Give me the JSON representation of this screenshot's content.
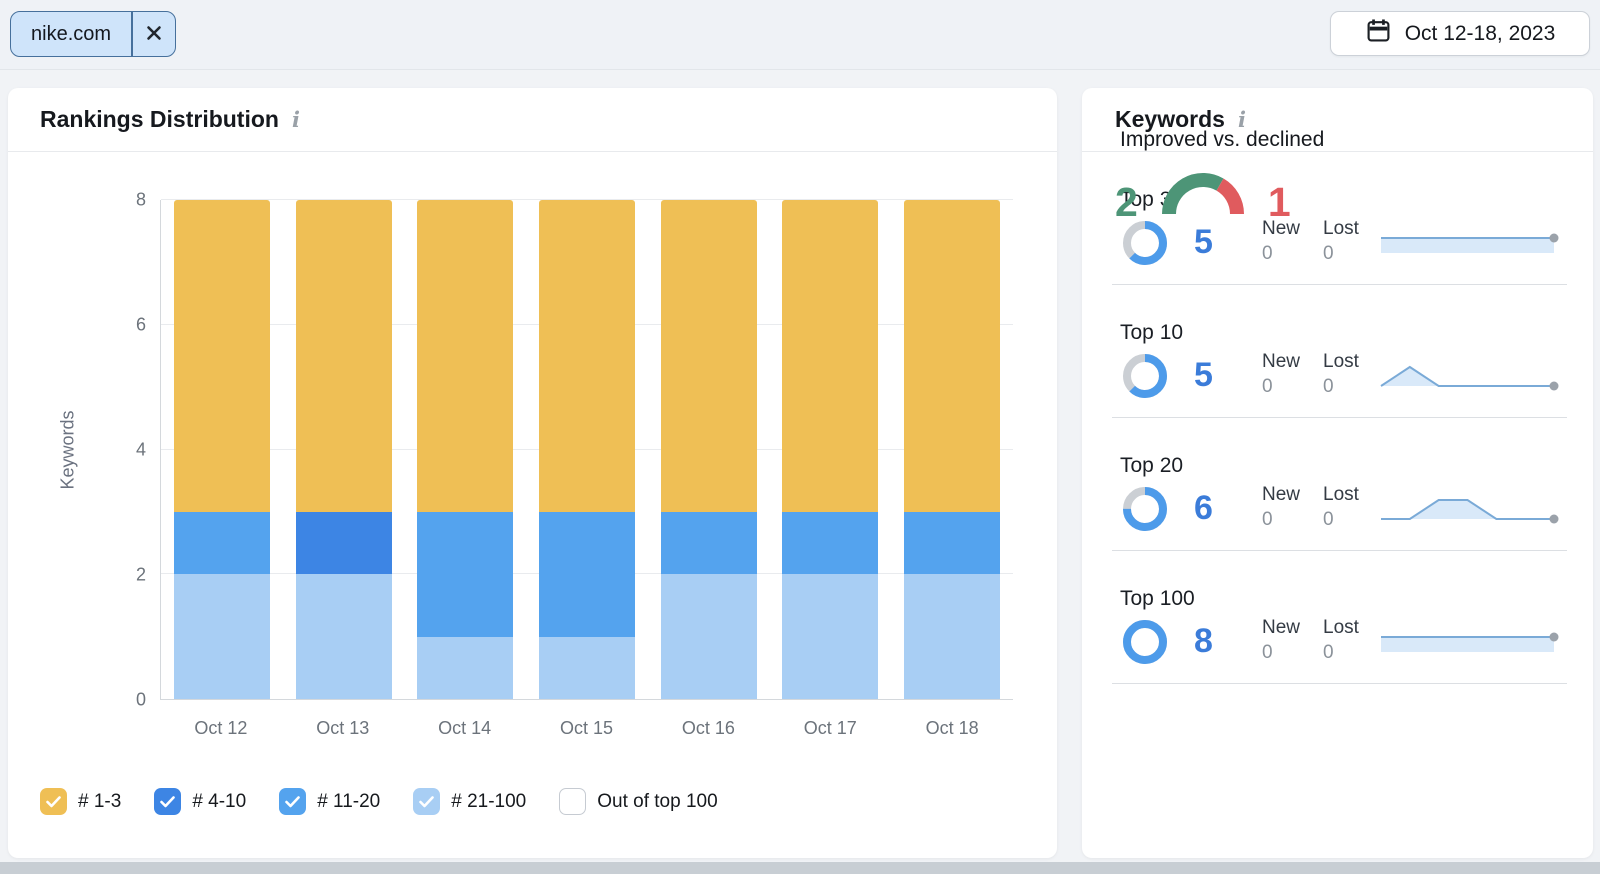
{
  "top_bar": {
    "project_chip": {
      "label": "nike.com"
    },
    "date_button": {
      "label": "Oct 12-18, 2023"
    }
  },
  "rankings_card": {
    "title": "Rankings Distribution",
    "info_icon": "i",
    "legend": [
      {
        "label": "# 1-3",
        "checked": true,
        "color": "#EFBF55"
      },
      {
        "label": "# 4-10",
        "checked": true,
        "color": "#3D85E4"
      },
      {
        "label": "# 11-20",
        "checked": true,
        "color": "#54A3EE"
      },
      {
        "label": "# 21-100",
        "checked": true,
        "color": "#A8CEF4"
      },
      {
        "label": "Out of top 100",
        "checked": false,
        "color": "#FFFFFF"
      }
    ]
  },
  "chart_data": {
    "type": "bar",
    "stacked": true,
    "title": "Rankings Distribution",
    "ylabel": "Keywords",
    "ylim": [
      0,
      8
    ],
    "yticks": [
      0,
      2,
      4,
      6,
      8
    ],
    "grid": true,
    "legend_position": "bottom",
    "categories": [
      "Oct 12",
      "Oct 13",
      "Oct 14",
      "Oct 15",
      "Oct 16",
      "Oct 17",
      "Oct 18"
    ],
    "series": [
      {
        "name": "# 21-100",
        "color": "#A8CEF4",
        "values": [
          2,
          2,
          1,
          1,
          2,
          2,
          2
        ]
      },
      {
        "name": "# 11-20",
        "color": "#54A3EE",
        "values": [
          1,
          0,
          2,
          2,
          1,
          1,
          1
        ]
      },
      {
        "name": "# 4-10",
        "color": "#3D85E4",
        "values": [
          0,
          1,
          0,
          0,
          0,
          0,
          0
        ]
      },
      {
        "name": "# 1-3",
        "color": "#EFBF55",
        "values": [
          5,
          5,
          5,
          5,
          5,
          5,
          5
        ]
      }
    ]
  },
  "keywords_card": {
    "title": "Keywords",
    "info_icon": "i",
    "rows": [
      {
        "label": "Top 3",
        "value": 5,
        "total": 8,
        "new_label": "New",
        "new_value": "0",
        "lost_label": "Lost",
        "lost_value": "0",
        "trend": [
          5,
          5,
          5,
          5,
          5,
          5,
          5
        ]
      },
      {
        "label": "Top 10",
        "value": 5,
        "total": 8,
        "new_label": "New",
        "new_value": "0",
        "lost_label": "Lost",
        "lost_value": "0",
        "trend": [
          5,
          6,
          5,
          5,
          5,
          5,
          5
        ]
      },
      {
        "label": "Top 20",
        "value": 6,
        "total": 8,
        "new_label": "New",
        "new_value": "0",
        "lost_label": "Lost",
        "lost_value": "0",
        "trend": [
          6,
          6,
          7,
          7,
          6,
          6,
          6
        ]
      },
      {
        "label": "Top 100",
        "value": 8,
        "total": 8,
        "new_label": "New",
        "new_value": "0",
        "lost_label": "Lost",
        "lost_value": "0",
        "trend": [
          8,
          8,
          8,
          8,
          8,
          8,
          8
        ]
      }
    ],
    "improved_vs_declined": {
      "label": "Improved vs. declined",
      "improved": "2",
      "declined": "1"
    },
    "colors": {
      "donut_blue": "#4D9BEA",
      "donut_gray": "#CBCFD4",
      "value_blue": "#3B7CD9",
      "spark_line": "#7AAAD7",
      "spark_fill": "#D9E9F9",
      "spark_dot": "#9BA2AA",
      "improved_green": "#4D9577",
      "declined_red": "#E05B5E"
    }
  }
}
